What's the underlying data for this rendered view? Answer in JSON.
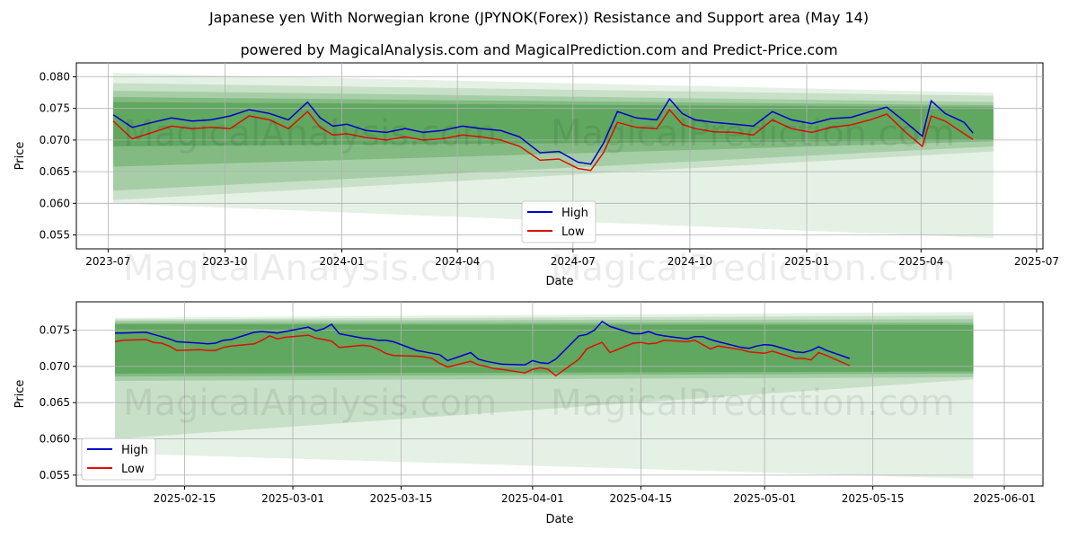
{
  "title": "Japanese yen With Norwegian krone (JPYNOK(Forex)) Resistance and Support area (May 14)",
  "subtitle": "powered by MagicalAnalysis.com and MagicalPrediction.com and Predict-Price.com",
  "watermarks": [
    "MagicalAnalysis.com",
    "MagicalPrediction.com"
  ],
  "colors": {
    "high": "#0000cc",
    "low": "#dd1100",
    "band": "#2e8b2e",
    "grid": "#b0b0b0"
  },
  "chart_data": [
    {
      "type": "line",
      "xlabel": "Date",
      "ylabel": "Price",
      "xticks": [
        "2023-07",
        "2023-10",
        "2024-01",
        "2024-04",
        "2024-07",
        "2024-10",
        "2025-01",
        "2025-04",
        "2025-07"
      ],
      "xlim": [
        "2023-06-06",
        "2025-07-06"
      ],
      "yticks": [
        "0.055",
        "0.060",
        "0.065",
        "0.070",
        "0.075",
        "0.080"
      ],
      "ylim": [
        0.0528,
        0.0822
      ],
      "grid": true,
      "legend": {
        "position": "lower-center",
        "entries": [
          "High",
          "Low"
        ]
      },
      "x": [
        "2023-07-05",
        "2023-07-20",
        "2023-08-05",
        "2023-08-20",
        "2023-09-05",
        "2023-09-20",
        "2023-10-05",
        "2023-10-20",
        "2023-11-05",
        "2023-11-20",
        "2023-12-05",
        "2023-12-15",
        "2023-12-25",
        "2024-01-05",
        "2024-01-20",
        "2024-02-05",
        "2024-02-20",
        "2024-03-05",
        "2024-03-20",
        "2024-04-05",
        "2024-04-20",
        "2024-05-05",
        "2024-05-20",
        "2024-06-05",
        "2024-06-20",
        "2024-07-05",
        "2024-07-15",
        "2024-07-25",
        "2024-08-05",
        "2024-08-20",
        "2024-09-05",
        "2024-09-15",
        "2024-09-25",
        "2024-10-05",
        "2024-10-20",
        "2024-11-05",
        "2024-11-20",
        "2024-12-05",
        "2024-12-20",
        "2025-01-05",
        "2025-01-20",
        "2025-02-05",
        "2025-02-20",
        "2025-03-05",
        "2025-03-20",
        "2025-04-02",
        "2025-04-09",
        "2025-04-20",
        "2025-05-05",
        "2025-05-12"
      ],
      "series": [
        {
          "name": "High",
          "values": [
            0.074,
            0.072,
            0.0728,
            0.0735,
            0.073,
            0.0732,
            0.0738,
            0.0748,
            0.0742,
            0.0732,
            0.076,
            0.0735,
            0.0722,
            0.0725,
            0.0715,
            0.0712,
            0.0718,
            0.0712,
            0.0715,
            0.0722,
            0.0718,
            0.0715,
            0.0705,
            0.068,
            0.0682,
            0.0665,
            0.0662,
            0.0695,
            0.0745,
            0.0735,
            0.0732,
            0.0765,
            0.0742,
            0.0732,
            0.0728,
            0.0725,
            0.0722,
            0.0745,
            0.0732,
            0.0726,
            0.0734,
            0.0736,
            0.0745,
            0.0752,
            0.0728,
            0.0706,
            0.0762,
            0.0742,
            0.0728,
            0.0711
          ]
        },
        {
          "name": "Low",
          "values": [
            0.073,
            0.0702,
            0.0712,
            0.0722,
            0.0718,
            0.072,
            0.0718,
            0.0738,
            0.0732,
            0.0718,
            0.0745,
            0.072,
            0.0708,
            0.071,
            0.0704,
            0.07,
            0.0705,
            0.07,
            0.0702,
            0.0708,
            0.0705,
            0.07,
            0.069,
            0.0668,
            0.067,
            0.0655,
            0.0652,
            0.068,
            0.0728,
            0.072,
            0.0718,
            0.0748,
            0.0725,
            0.0718,
            0.0713,
            0.0712,
            0.0708,
            0.0732,
            0.0718,
            0.0712,
            0.072,
            0.0724,
            0.0732,
            0.0741,
            0.0712,
            0.069,
            0.0738,
            0.073,
            0.071,
            0.0701
          ]
        }
      ],
      "bands": [
        {
          "x": [
            "2023-07-05",
            "2025-05-28"
          ],
          "upper": [
            0.0806,
            0.0775
          ],
          "lower": [
            0.06,
            0.0545
          ]
        },
        {
          "x": [
            "2023-07-05",
            "2025-05-28"
          ],
          "upper": [
            0.079,
            0.077
          ],
          "lower": [
            0.0605,
            0.0682
          ]
        },
        {
          "x": [
            "2023-07-05",
            "2025-05-28"
          ],
          "upper": [
            0.0778,
            0.076
          ],
          "lower": [
            0.062,
            0.069
          ]
        },
        {
          "x": [
            "2023-07-05",
            "2025-05-28"
          ],
          "upper": [
            0.0768,
            0.0755
          ],
          "lower": [
            0.0658,
            0.0698
          ]
        },
        {
          "x": [
            "2023-07-05",
            "2025-05-28"
          ],
          "upper": [
            0.076,
            0.0752
          ],
          "lower": [
            0.069,
            0.07
          ]
        }
      ]
    },
    {
      "type": "line",
      "xlabel": "Date",
      "ylabel": "Price",
      "xticks": [
        "2025-02-15",
        "2025-03-01",
        "2025-03-15",
        "2025-04-01",
        "2025-04-15",
        "2025-05-01",
        "2025-05-15",
        "2025-06-01"
      ],
      "xlim": [
        "2025-02-01",
        "2025-06-06"
      ],
      "yticks": [
        "0.055",
        "0.060",
        "0.065",
        "0.070",
        "0.075"
      ],
      "ylim": [
        0.0535,
        0.0789
      ],
      "grid": true,
      "legend": {
        "position": "lower-left",
        "entries": [
          "High",
          "Low"
        ]
      },
      "x": [
        "2025-02-06",
        "2025-02-07",
        "2025-02-10",
        "2025-02-11",
        "2025-02-12",
        "2025-02-13",
        "2025-02-14",
        "2025-02-17",
        "2025-02-18",
        "2025-02-19",
        "2025-02-20",
        "2025-02-21",
        "2025-02-24",
        "2025-02-25",
        "2025-02-26",
        "2025-02-27",
        "2025-02-28",
        "2025-03-03",
        "2025-03-04",
        "2025-03-05",
        "2025-03-06",
        "2025-03-07",
        "2025-03-10",
        "2025-03-11",
        "2025-03-12",
        "2025-03-13",
        "2025-03-14",
        "2025-03-17",
        "2025-03-18",
        "2025-03-19",
        "2025-03-20",
        "2025-03-21",
        "2025-03-24",
        "2025-03-25",
        "2025-03-26",
        "2025-03-27",
        "2025-03-28",
        "2025-03-31",
        "2025-04-01",
        "2025-04-02",
        "2025-04-03",
        "2025-04-04",
        "2025-04-07",
        "2025-04-08",
        "2025-04-09",
        "2025-04-10",
        "2025-04-11",
        "2025-04-14",
        "2025-04-15",
        "2025-04-16",
        "2025-04-17",
        "2025-04-18",
        "2025-04-21",
        "2025-04-22",
        "2025-04-23",
        "2025-04-24",
        "2025-04-25",
        "2025-04-28",
        "2025-04-29",
        "2025-04-30",
        "2025-05-01",
        "2025-05-02",
        "2025-05-05",
        "2025-05-06",
        "2025-05-07",
        "2025-05-08",
        "2025-05-09",
        "2025-05-12"
      ],
      "series": [
        {
          "name": "High",
          "values": [
            0.0746,
            0.0746,
            0.0747,
            0.0744,
            0.0741,
            0.0738,
            0.0734,
            0.0732,
            0.0731,
            0.0732,
            0.0736,
            0.0737,
            0.0747,
            0.0748,
            0.0747,
            0.0746,
            0.0748,
            0.0754,
            0.0749,
            0.0752,
            0.0758,
            0.0745,
            0.0739,
            0.0738,
            0.0736,
            0.0736,
            0.0734,
            0.0722,
            0.072,
            0.0718,
            0.0716,
            0.0708,
            0.0719,
            0.071,
            0.0707,
            0.0705,
            0.0703,
            0.0702,
            0.0708,
            0.0705,
            0.0704,
            0.071,
            0.0742,
            0.0744,
            0.075,
            0.0762,
            0.0755,
            0.0745,
            0.0745,
            0.0748,
            0.0744,
            0.0742,
            0.0738,
            0.0741,
            0.0741,
            0.0737,
            0.0734,
            0.0726,
            0.0725,
            0.0728,
            0.073,
            0.0729,
            0.072,
            0.0719,
            0.0722,
            0.0727,
            0.0722,
            0.0711
          ]
        },
        {
          "name": "Low",
          "values": [
            0.0734,
            0.0736,
            0.0737,
            0.0733,
            0.0732,
            0.0728,
            0.0722,
            0.0723,
            0.0722,
            0.0722,
            0.0726,
            0.0728,
            0.0731,
            0.0736,
            0.0742,
            0.0738,
            0.074,
            0.0743,
            0.0739,
            0.0737,
            0.0735,
            0.0726,
            0.0729,
            0.0728,
            0.0724,
            0.0718,
            0.0715,
            0.0714,
            0.0713,
            0.0711,
            0.0704,
            0.0699,
            0.0707,
            0.0702,
            0.07,
            0.0697,
            0.0696,
            0.0691,
            0.0696,
            0.0698,
            0.0696,
            0.0687,
            0.071,
            0.0724,
            0.0729,
            0.0733,
            0.0719,
            0.0732,
            0.0733,
            0.0731,
            0.0732,
            0.0736,
            0.0734,
            0.0736,
            0.073,
            0.0724,
            0.0728,
            0.0723,
            0.072,
            0.0719,
            0.0718,
            0.0721,
            0.0711,
            0.0711,
            0.0709,
            0.0719,
            0.0715,
            0.0701
          ]
        }
      ],
      "bands": [
        {
          "x": [
            "2025-02-06",
            "2025-05-28"
          ],
          "upper": [
            0.0767,
            0.0775
          ],
          "lower": [
            0.058,
            0.0545
          ]
        },
        {
          "x": [
            "2025-02-06",
            "2025-05-28"
          ],
          "upper": [
            0.0765,
            0.077
          ],
          "lower": [
            0.06,
            0.0682
          ]
        },
        {
          "x": [
            "2025-02-06",
            "2025-05-28"
          ],
          "upper": [
            0.0763,
            0.0765
          ],
          "lower": [
            0.068,
            0.0685
          ]
        },
        {
          "x": [
            "2025-02-06",
            "2025-05-28"
          ],
          "upper": [
            0.076,
            0.076
          ],
          "lower": [
            0.0686,
            0.069
          ]
        },
        {
          "x": [
            "2025-02-06",
            "2025-05-28"
          ],
          "upper": [
            0.0758,
            0.0757
          ],
          "lower": [
            0.069,
            0.0693
          ]
        }
      ]
    }
  ]
}
